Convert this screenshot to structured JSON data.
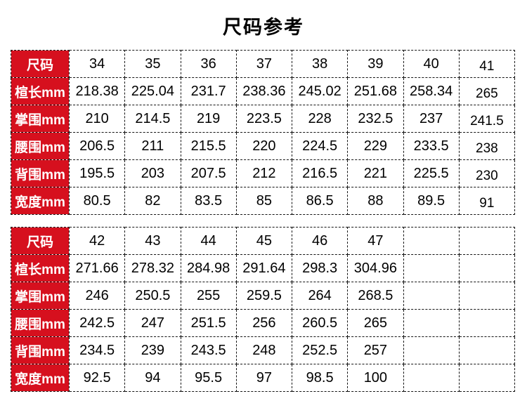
{
  "page": {
    "title": "尺码参考"
  },
  "colors": {
    "header_red": "#d6101e",
    "header_text": "#ffffff",
    "border": "#141414",
    "value_text": "#000000",
    "background": "#ffffff"
  },
  "tables": [
    {
      "name": "size-table-34-41",
      "row_labels": [
        "尺码",
        "楦长mm",
        "掌围mm",
        "腰围mm",
        "背围mm",
        "宽度mm"
      ],
      "rows": [
        [
          "34",
          "35",
          "36",
          "37",
          "38",
          "39",
          "40",
          "41"
        ],
        [
          "218.38",
          "225.04",
          "231.7",
          "238.36",
          "245.02",
          "251.68",
          "258.34",
          "265"
        ],
        [
          "210",
          "214.5",
          "219",
          "223.5",
          "228",
          "232.5",
          "237",
          "241.5"
        ],
        [
          "206.5",
          "211",
          "215.5",
          "220",
          "224.5",
          "229",
          "233.5",
          "238"
        ],
        [
          "195.5",
          "203",
          "207.5",
          "212",
          "216.5",
          "221",
          "225.5",
          "230"
        ],
        [
          "80.5",
          "82",
          "83.5",
          "85",
          "86.5",
          "88",
          "89.5",
          "91"
        ]
      ]
    },
    {
      "name": "size-table-42-47",
      "row_labels": [
        "尺码",
        "楦长mm",
        "掌围mm",
        "腰围mm",
        "背围mm",
        "宽度mm"
      ],
      "rows": [
        [
          "42",
          "43",
          "44",
          "45",
          "46",
          "47",
          "",
          ""
        ],
        [
          "271.66",
          "278.32",
          "284.98",
          "291.64",
          "298.3",
          "304.96",
          "",
          ""
        ],
        [
          "246",
          "250.5",
          "255",
          "259.5",
          "264",
          "268.5",
          "",
          ""
        ],
        [
          "242.5",
          "247",
          "251.5",
          "256",
          "260.5",
          "265",
          "",
          ""
        ],
        [
          "234.5",
          "239",
          "243.5",
          "248",
          "252.5",
          "257",
          "",
          ""
        ],
        [
          "92.5",
          "94",
          "95.5",
          "97",
          "98.5",
          "100",
          "",
          ""
        ]
      ]
    }
  ]
}
